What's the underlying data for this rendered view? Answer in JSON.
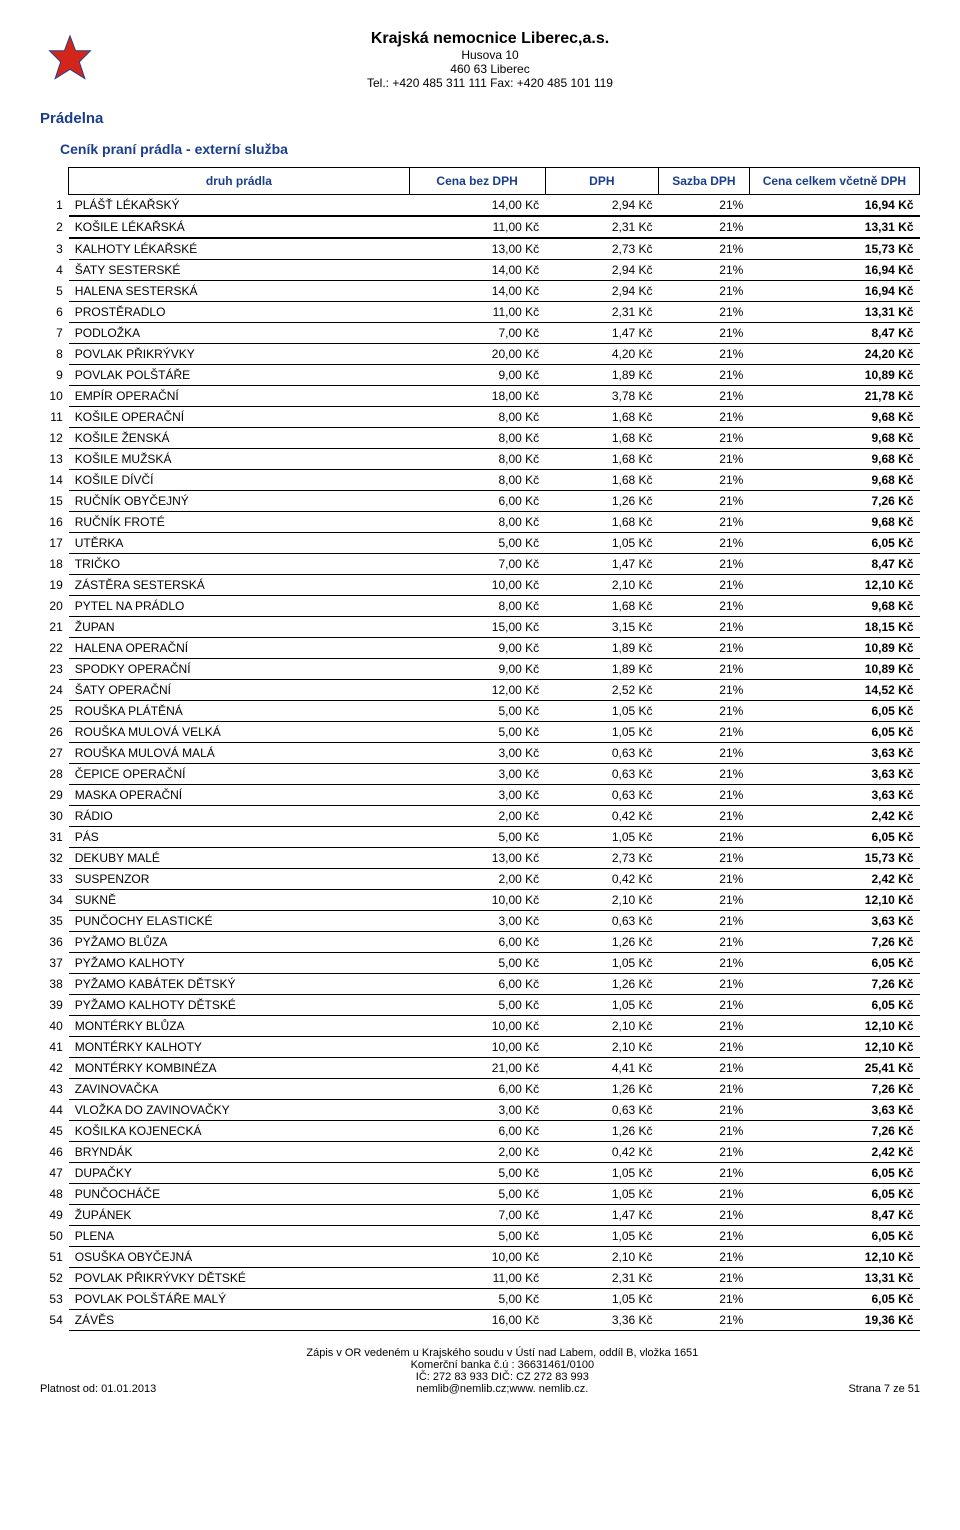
{
  "header": {
    "org_name": "Krajská nemocnice Liberec,a.s.",
    "addr1": "Husova 10",
    "addr2": "460 63 Liberec",
    "tel": "Tel.: +420 485 311 111 Fax: +420 485 101 119"
  },
  "section_title": "Prádelna",
  "sub_title": "Ceník praní prádla - externí služba",
  "columns": {
    "druh": "druh prádla",
    "bez": "Cena\nbez DPH",
    "dph": "DPH",
    "sazba": "Sazba\nDPH",
    "celkem": "Cena celkem\nvčetně DPH"
  },
  "currency": "Kč",
  "rows": [
    {
      "i": 1,
      "n": "PLÁŠŤ LÉKAŘSKÝ",
      "a": "14,00 Kč",
      "b": "2,94 Kč",
      "c": "21%",
      "d": "16,94 Kč"
    },
    {
      "i": 2,
      "n": "KOŠILE LÉKAŘSKÁ",
      "a": "11,00 Kč",
      "b": "2,31 Kč",
      "c": "21%",
      "d": "13,31 Kč"
    },
    {
      "i": 3,
      "n": "KALHOTY LÉKAŘSKÉ",
      "a": "13,00 Kč",
      "b": "2,73 Kč",
      "c": "21%",
      "d": "15,73 Kč"
    },
    {
      "i": 4,
      "n": "ŠATY SESTERSKÉ",
      "a": "14,00 Kč",
      "b": "2,94 Kč",
      "c": "21%",
      "d": "16,94 Kč"
    },
    {
      "i": 5,
      "n": "HALENA SESTERSKÁ",
      "a": "14,00 Kč",
      "b": "2,94 Kč",
      "c": "21%",
      "d": "16,94 Kč"
    },
    {
      "i": 6,
      "n": "PROSTĚRADLO",
      "a": "11,00 Kč",
      "b": "2,31 Kč",
      "c": "21%",
      "d": "13,31 Kč"
    },
    {
      "i": 7,
      "n": "PODLOŽKA",
      "a": "7,00 Kč",
      "b": "1,47 Kč",
      "c": "21%",
      "d": "8,47 Kč"
    },
    {
      "i": 8,
      "n": "POVLAK PŘIKRÝVKY",
      "a": "20,00 Kč",
      "b": "4,20 Kč",
      "c": "21%",
      "d": "24,20 Kč"
    },
    {
      "i": 9,
      "n": "POVLAK POLŠTÁŘE",
      "a": "9,00 Kč",
      "b": "1,89 Kč",
      "c": "21%",
      "d": "10,89 Kč"
    },
    {
      "i": 10,
      "n": "EMPÍR OPERAČNÍ",
      "a": "18,00 Kč",
      "b": "3,78 Kč",
      "c": "21%",
      "d": "21,78 Kč"
    },
    {
      "i": 11,
      "n": "KOŠILE OPERAČNÍ",
      "a": "8,00 Kč",
      "b": "1,68 Kč",
      "c": "21%",
      "d": "9,68 Kč"
    },
    {
      "i": 12,
      "n": "KOŠILE ŽENSKÁ",
      "a": "8,00 Kč",
      "b": "1,68 Kč",
      "c": "21%",
      "d": "9,68 Kč"
    },
    {
      "i": 13,
      "n": "KOŠILE MUŽSKÁ",
      "a": "8,00 Kč",
      "b": "1,68 Kč",
      "c": "21%",
      "d": "9,68 Kč"
    },
    {
      "i": 14,
      "n": "KOŠILE DÍVČÍ",
      "a": "8,00 Kč",
      "b": "1,68 Kč",
      "c": "21%",
      "d": "9,68 Kč"
    },
    {
      "i": 15,
      "n": "RUČNÍK OBYČEJNÝ",
      "a": "6,00 Kč",
      "b": "1,26 Kč",
      "c": "21%",
      "d": "7,26 Kč"
    },
    {
      "i": 16,
      "n": "RUČNÍK FROTÉ",
      "a": "8,00 Kč",
      "b": "1,68 Kč",
      "c": "21%",
      "d": "9,68 Kč"
    },
    {
      "i": 17,
      "n": "UTĚRKA",
      "a": "5,00 Kč",
      "b": "1,05 Kč",
      "c": "21%",
      "d": "6,05 Kč"
    },
    {
      "i": 18,
      "n": "TRIČKO",
      "a": "7,00 Kč",
      "b": "1,47 Kč",
      "c": "21%",
      "d": "8,47 Kč"
    },
    {
      "i": 19,
      "n": "ZÁSTĚRA SESTERSKÁ",
      "a": "10,00 Kč",
      "b": "2,10 Kč",
      "c": "21%",
      "d": "12,10 Kč"
    },
    {
      "i": 20,
      "n": "PYTEL NA PRÁDLO",
      "a": "8,00 Kč",
      "b": "1,68 Kč",
      "c": "21%",
      "d": "9,68 Kč"
    },
    {
      "i": 21,
      "n": "ŽUPAN",
      "a": "15,00 Kč",
      "b": "3,15 Kč",
      "c": "21%",
      "d": "18,15 Kč"
    },
    {
      "i": 22,
      "n": "HALENA OPERAČNÍ",
      "a": "9,00 Kč",
      "b": "1,89 Kč",
      "c": "21%",
      "d": "10,89 Kč"
    },
    {
      "i": 23,
      "n": "SPODKY OPERAČNÍ",
      "a": "9,00 Kč",
      "b": "1,89 Kč",
      "c": "21%",
      "d": "10,89 Kč"
    },
    {
      "i": 24,
      "n": "ŠATY OPERAČNÍ",
      "a": "12,00 Kč",
      "b": "2,52 Kč",
      "c": "21%",
      "d": "14,52 Kč"
    },
    {
      "i": 25,
      "n": "ROUŠKA PLÁTĚNÁ",
      "a": "5,00 Kč",
      "b": "1,05 Kč",
      "c": "21%",
      "d": "6,05 Kč"
    },
    {
      "i": 26,
      "n": "ROUŠKA MULOVÁ VELKÁ",
      "a": "5,00 Kč",
      "b": "1,05 Kč",
      "c": "21%",
      "d": "6,05 Kč"
    },
    {
      "i": 27,
      "n": "ROUŠKA MULOVÁ MALÁ",
      "a": "3,00 Kč",
      "b": "0,63 Kč",
      "c": "21%",
      "d": "3,63 Kč"
    },
    {
      "i": 28,
      "n": "ČEPICE OPERAČNÍ",
      "a": "3,00 Kč",
      "b": "0,63 Kč",
      "c": "21%",
      "d": "3,63 Kč"
    },
    {
      "i": 29,
      "n": "MASKA OPERAČNÍ",
      "a": "3,00 Kč",
      "b": "0,63 Kč",
      "c": "21%",
      "d": "3,63 Kč"
    },
    {
      "i": 30,
      "n": "RÁDIO",
      "a": "2,00 Kč",
      "b": "0,42 Kč",
      "c": "21%",
      "d": "2,42 Kč"
    },
    {
      "i": 31,
      "n": "PÁS",
      "a": "5,00 Kč",
      "b": "1,05 Kč",
      "c": "21%",
      "d": "6,05 Kč"
    },
    {
      "i": 32,
      "n": "DEKUBY MALÉ",
      "a": "13,00 Kč",
      "b": "2,73 Kč",
      "c": "21%",
      "d": "15,73 Kč"
    },
    {
      "i": 33,
      "n": "SUSPENZOR",
      "a": "2,00 Kč",
      "b": "0,42 Kč",
      "c": "21%",
      "d": "2,42 Kč"
    },
    {
      "i": 34,
      "n": "SUKNĚ",
      "a": "10,00 Kč",
      "b": "2,10 Kč",
      "c": "21%",
      "d": "12,10 Kč"
    },
    {
      "i": 35,
      "n": "PUNČOCHY ELASTICKÉ",
      "a": "3,00 Kč",
      "b": "0,63 Kč",
      "c": "21%",
      "d": "3,63 Kč"
    },
    {
      "i": 36,
      "n": "PYŽAMO BLŮZA",
      "a": "6,00 Kč",
      "b": "1,26 Kč",
      "c": "21%",
      "d": "7,26 Kč"
    },
    {
      "i": 37,
      "n": "PYŽAMO KALHOTY",
      "a": "5,00 Kč",
      "b": "1,05 Kč",
      "c": "21%",
      "d": "6,05 Kč"
    },
    {
      "i": 38,
      "n": "PYŽAMO KABÁTEK DĚTSKÝ",
      "a": "6,00 Kč",
      "b": "1,26 Kč",
      "c": "21%",
      "d": "7,26 Kč"
    },
    {
      "i": 39,
      "n": "PYŽAMO KALHOTY DĚTSKÉ",
      "a": "5,00 Kč",
      "b": "1,05 Kč",
      "c": "21%",
      "d": "6,05 Kč"
    },
    {
      "i": 40,
      "n": "MONTÉRKY BLŮZA",
      "a": "10,00 Kč",
      "b": "2,10 Kč",
      "c": "21%",
      "d": "12,10 Kč"
    },
    {
      "i": 41,
      "n": "MONTÉRKY KALHOTY",
      "a": "10,00 Kč",
      "b": "2,10 Kč",
      "c": "21%",
      "d": "12,10 Kč"
    },
    {
      "i": 42,
      "n": "MONTÉRKY KOMBINÉZA",
      "a": "21,00 Kč",
      "b": "4,41 Kč",
      "c": "21%",
      "d": "25,41 Kč"
    },
    {
      "i": 43,
      "n": "ZAVINOVAČKA",
      "a": "6,00 Kč",
      "b": "1,26 Kč",
      "c": "21%",
      "d": "7,26 Kč"
    },
    {
      "i": 44,
      "n": "VLOŽKA DO ZAVINOVAČKY",
      "a": "3,00 Kč",
      "b": "0,63 Kč",
      "c": "21%",
      "d": "3,63 Kč"
    },
    {
      "i": 45,
      "n": "KOŠILKA KOJENECKÁ",
      "a": "6,00 Kč",
      "b": "1,26 Kč",
      "c": "21%",
      "d": "7,26 Kč"
    },
    {
      "i": 46,
      "n": "BRYNDÁK",
      "a": "2,00 Kč",
      "b": "0,42 Kč",
      "c": "21%",
      "d": "2,42 Kč"
    },
    {
      "i": 47,
      "n": "DUPAČKY",
      "a": "5,00 Kč",
      "b": "1,05 Kč",
      "c": "21%",
      "d": "6,05 Kč"
    },
    {
      "i": 48,
      "n": "PUNČOCHÁČE",
      "a": "5,00 Kč",
      "b": "1,05 Kč",
      "c": "21%",
      "d": "6,05 Kč"
    },
    {
      "i": 49,
      "n": "ŽUPÁNEK",
      "a": "7,00 Kč",
      "b": "1,47 Kč",
      "c": "21%",
      "d": "8,47 Kč"
    },
    {
      "i": 50,
      "n": "PLENA",
      "a": "5,00 Kč",
      "b": "1,05 Kč",
      "c": "21%",
      "d": "6,05 Kč"
    },
    {
      "i": 51,
      "n": "OSUŠKA OBYČEJNÁ",
      "a": "10,00 Kč",
      "b": "2,10 Kč",
      "c": "21%",
      "d": "12,10 Kč"
    },
    {
      "i": 52,
      "n": "POVLAK PŘIKRÝVKY DĚTSKÉ",
      "a": "11,00 Kč",
      "b": "2,31 Kč",
      "c": "21%",
      "d": "13,31 Kč"
    },
    {
      "i": 53,
      "n": "POVLAK POLŠTÁŘE MALÝ",
      "a": "5,00 Kč",
      "b": "1,05 Kč",
      "c": "21%",
      "d": "6,05 Kč"
    },
    {
      "i": 54,
      "n": "ZÁVĚS",
      "a": "16,00 Kč",
      "b": "3,36 Kč",
      "c": "21%",
      "d": "19,36 Kč"
    }
  ],
  "footer": {
    "left": "Platnost od: 01.01.2013",
    "c1": "Zápis v OR vedeném u Krajského soudu v Ústí nad Labem, oddíl B, vložka 1651",
    "c2": "Komerční banka č.ú : 36631461/0100",
    "c3": "IČ: 272 83 933   DIČ: CZ 272 83 993",
    "c4": "nemlib@nemlib.cz;www. nemlib.cz.",
    "right": "Strana 7 ze 51"
  },
  "style": {
    "header_color": "#1a3e8c",
    "logo_red": "#d4251a",
    "logo_blue": "#1a3e8c",
    "thick_border_rows": [
      1,
      2
    ]
  }
}
